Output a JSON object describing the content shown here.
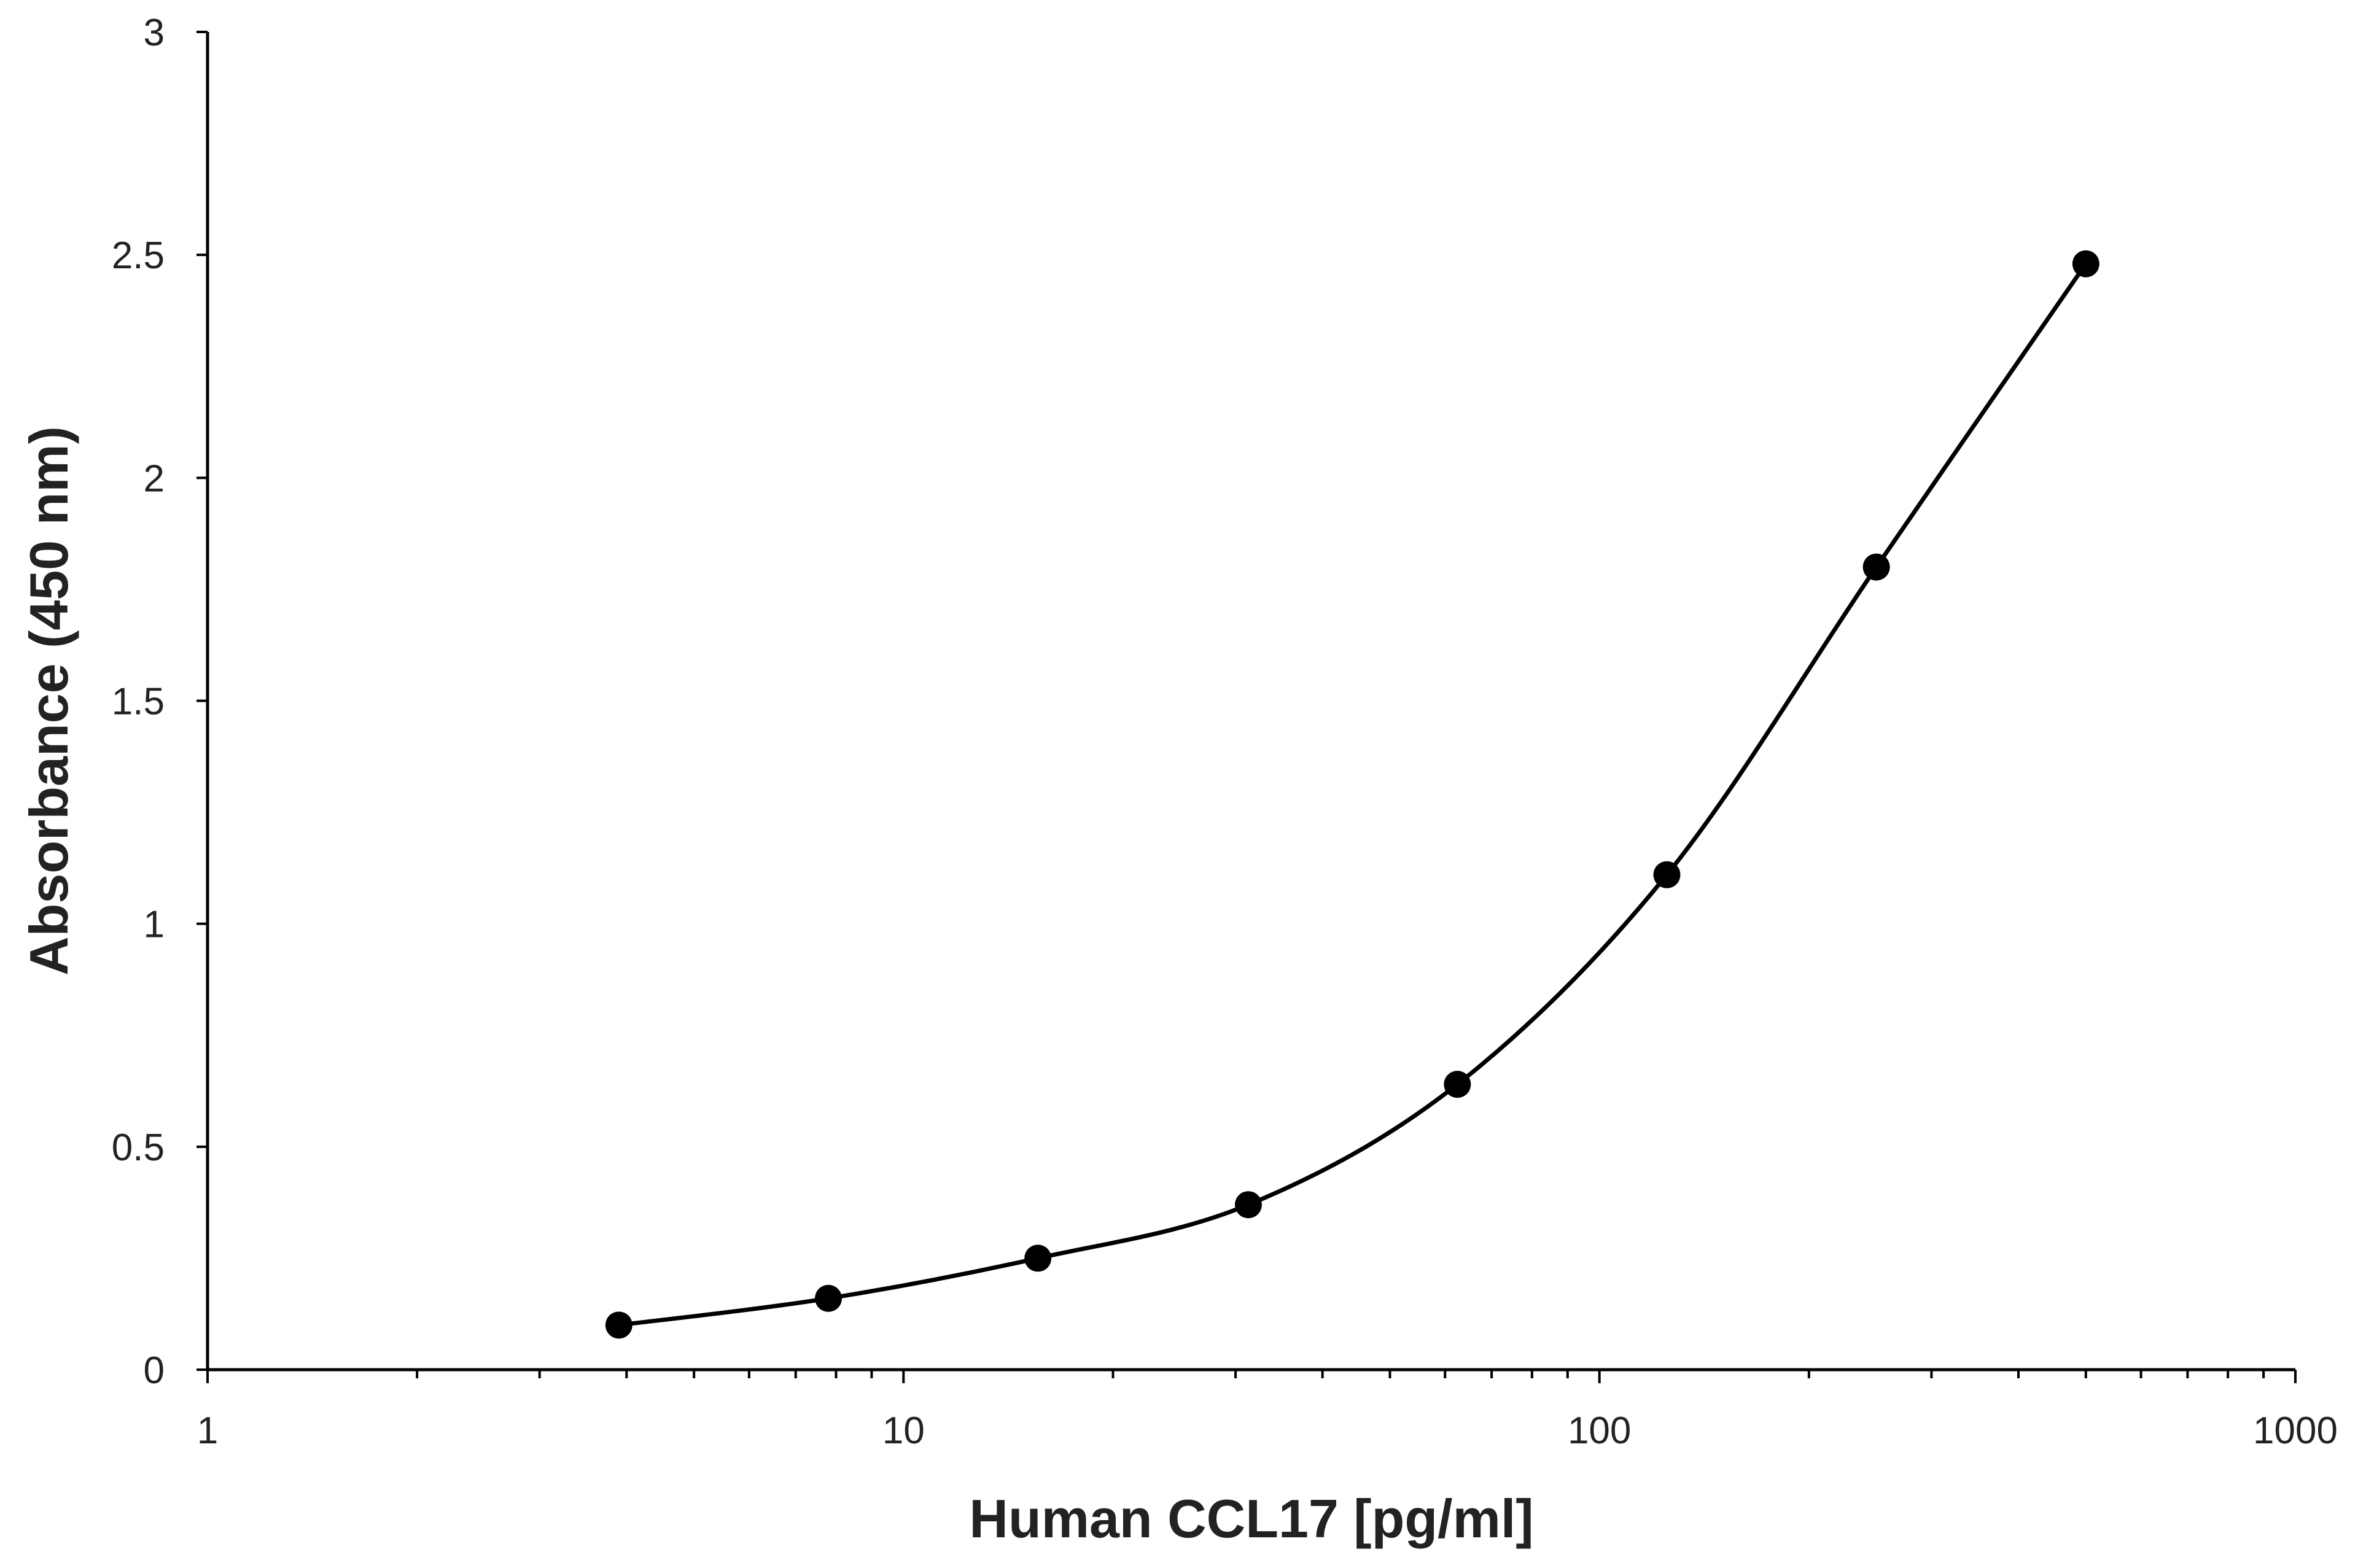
{
  "chart_data": {
    "type": "line",
    "xlabel": "Human CCL17 [pg/ml]",
    "ylabel": "Absorbance (450 nm)",
    "xscale": "log",
    "xlim": [
      1,
      1000
    ],
    "ylim": [
      0,
      3
    ],
    "x_ticks": [
      1,
      10,
      100,
      1000
    ],
    "y_ticks": [
      0,
      0.5,
      1,
      1.5,
      2,
      2.5,
      3
    ],
    "x_tick_labels": [
      "1",
      "10",
      "100",
      "1000"
    ],
    "y_tick_labels": [
      "0",
      "0.5",
      "1",
      "1.5",
      "2",
      "2.5",
      "3"
    ],
    "grid": false,
    "legend": "none",
    "smooth": true,
    "marker": "filled-circle",
    "series": [
      {
        "x": [
          3.9,
          7.8,
          15.6,
          31.3,
          62.5,
          125,
          250,
          500
        ],
        "y": [
          0.1,
          0.16,
          0.25,
          0.37,
          0.64,
          1.11,
          1.8,
          2.48
        ]
      }
    ],
    "colors": {
      "line": "#000000",
      "axis": "#000000",
      "text": "#222222",
      "background": "#ffffff"
    }
  }
}
